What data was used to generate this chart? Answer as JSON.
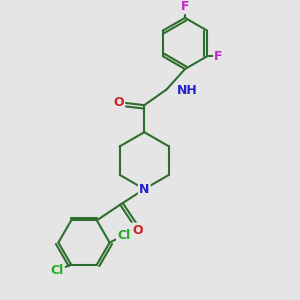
{
  "background_color": "#e5e5e5",
  "bond_color": "#2d6e2d",
  "bond_width": 1.5,
  "atom_colors": {
    "N": "#2222cc",
    "O": "#cc2222",
    "Cl": "#22aa22",
    "F": "#cc22cc",
    "H": "#888888",
    "C": "#2d6e2d"
  },
  "font_size": 9,
  "title": ""
}
